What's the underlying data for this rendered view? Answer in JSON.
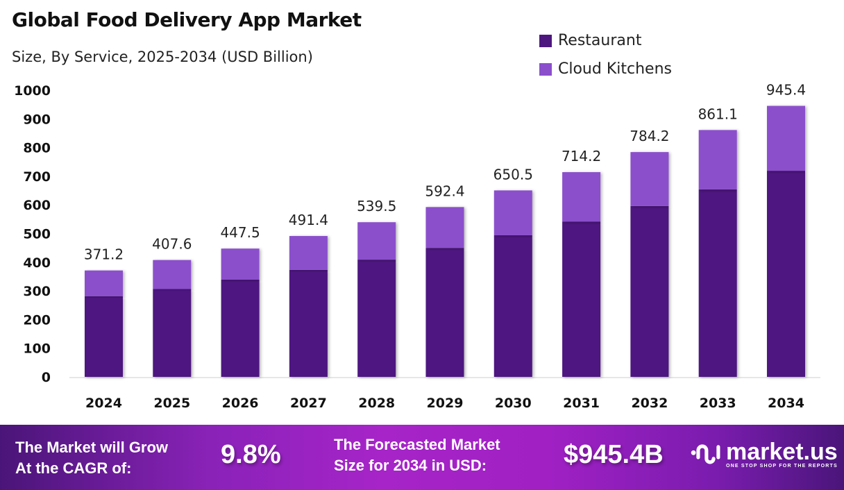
{
  "chart_data": {
    "type": "bar",
    "stacked": true,
    "title": "Global Food Delivery App Market",
    "subtitle": "Size, By Service, 2025-2034 (USD Billion)",
    "categories": [
      "2024",
      "2025",
      "2026",
      "2027",
      "2028",
      "2029",
      "2030",
      "2031",
      "2032",
      "2033",
      "2034"
    ],
    "series": [
      {
        "name": "Restaurant",
        "color": "#4e1780",
        "values": [
          281,
          307,
          339,
          373,
          409,
          450,
          494,
          542,
          596,
          654,
          719
        ]
      },
      {
        "name": "Cloud Kitchens",
        "color": "#8b4fcc",
        "values": [
          90.2,
          100.6,
          108.5,
          118.4,
          130.5,
          142.4,
          156.5,
          172.2,
          188.2,
          207.1,
          226.4
        ]
      }
    ],
    "totals": [
      "371.2",
      "407.6",
      "447.5",
      "491.4",
      "539.5",
      "592.4",
      "650.5",
      "714.2",
      "784.2",
      "861.1",
      "945.4"
    ],
    "yticks": [
      "0",
      "100",
      "200",
      "300",
      "400",
      "500",
      "600",
      "700",
      "800",
      "900",
      "1000"
    ],
    "ylim": [
      0,
      1000
    ],
    "grid": false,
    "legend_position": "top-right"
  },
  "footer": {
    "cagr_label_line1": "The Market will Grow",
    "cagr_label_line2": "At the CAGR of:",
    "cagr_value": "9.8%",
    "forecast_label_line1": "The Forecasted Market",
    "forecast_label_line2": "Size for 2034 in USD:",
    "forecast_value": "$945.4B",
    "logo_text": "market.us",
    "logo_tagline": "ONE STOP SHOP FOR THE REPORTS"
  }
}
